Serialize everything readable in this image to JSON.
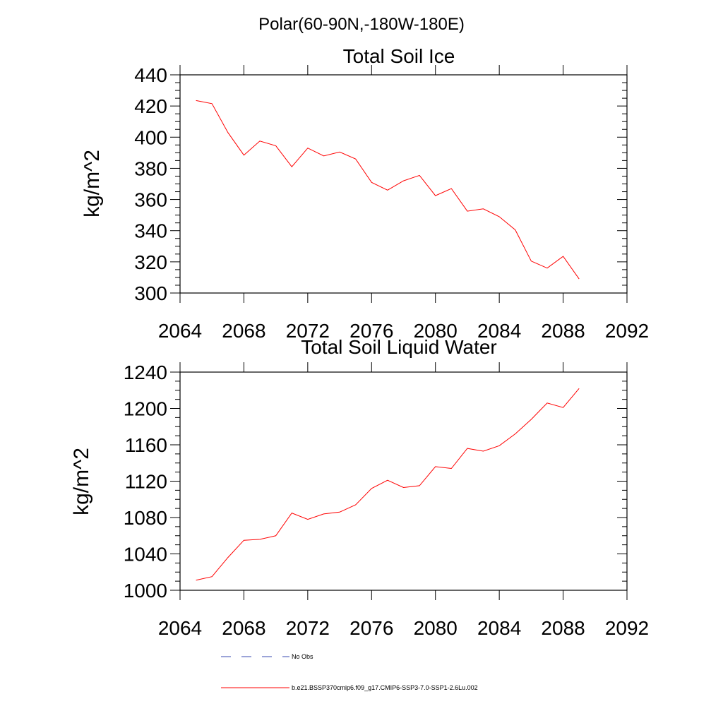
{
  "figure": {
    "supertitle": "Polar(60-90N,-180W-180E)"
  },
  "chart_data": [
    {
      "type": "line",
      "title": "Total Soil Ice",
      "xlabel": "",
      "ylabel": "kg/m^2",
      "xlim": [
        2064,
        2092
      ],
      "ylim": [
        300,
        440
      ],
      "xticks": [
        2064,
        2068,
        2072,
        2076,
        2080,
        2084,
        2088,
        2092
      ],
      "yticks": [
        300,
        320,
        340,
        360,
        380,
        400,
        420,
        440
      ],
      "x": [
        2065,
        2066,
        2067,
        2068,
        2069,
        2070,
        2071,
        2072,
        2073,
        2074,
        2075,
        2076,
        2077,
        2078,
        2079,
        2080,
        2081,
        2082,
        2083,
        2084,
        2085,
        2086,
        2087,
        2088,
        2089
      ],
      "series": [
        {
          "name": "b.e21.BSSP370cmip6.f09_g17.CMIP6-SSP3-7.0-SSP1-2.6Lu.002",
          "color": "#ff0000",
          "values": [
            423.5,
            421.5,
            403,
            388.5,
            397.5,
            394.5,
            381,
            393,
            388,
            390.5,
            386,
            371,
            366,
            372,
            375.5,
            362.5,
            367,
            352.5,
            354,
            349,
            340.5,
            320.5,
            316,
            323.5,
            309
          ]
        }
      ]
    },
    {
      "type": "line",
      "title": "Total Soil Liquid Water",
      "xlabel": "",
      "ylabel": "kg/m^2",
      "xlim": [
        2064,
        2092
      ],
      "ylim": [
        1000,
        1240
      ],
      "xticks": [
        2064,
        2068,
        2072,
        2076,
        2080,
        2084,
        2088,
        2092
      ],
      "yticks": [
        1000,
        1040,
        1080,
        1120,
        1160,
        1200,
        1240
      ],
      "x": [
        2065,
        2066,
        2067,
        2068,
        2069,
        2070,
        2071,
        2072,
        2073,
        2074,
        2075,
        2076,
        2077,
        2078,
        2079,
        2080,
        2081,
        2082,
        2083,
        2084,
        2085,
        2086,
        2087,
        2088,
        2089
      ],
      "series": [
        {
          "name": "b.e21.BSSP370cmip6.f09_g17.CMIP6-SSP3-7.0-SSP1-2.6Lu.002",
          "color": "#ff0000",
          "values": [
            1011,
            1015,
            1036,
            1055,
            1056,
            1060,
            1085,
            1078,
            1084,
            1086,
            1094,
            1112,
            1121,
            1113,
            1115,
            1136,
            1134,
            1156,
            1153,
            1159,
            1172,
            1188,
            1206,
            1201,
            1222
          ]
        }
      ]
    }
  ],
  "legend": {
    "placement": "bottom",
    "items": [
      {
        "label": "No Obs",
        "color": "#3a4ab0",
        "dash": "dashed"
      },
      {
        "label": "b.e21.BSSP370cmip6.f09_g17.CMIP6-SSP3-7.0-SSP1-2.6Lu.002",
        "color": "#ff0000",
        "dash": "solid"
      }
    ]
  }
}
